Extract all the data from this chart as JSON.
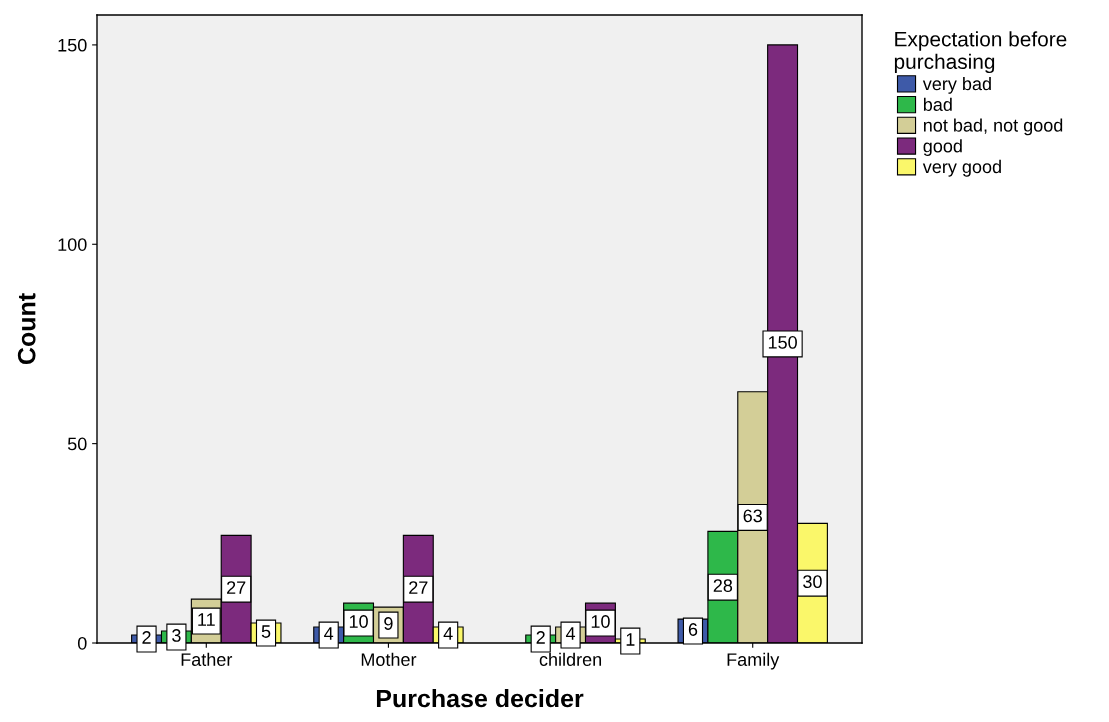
{
  "chart_data": {
    "type": "bar",
    "xlabel": "Purchase decider",
    "ylabel": "Count",
    "legend_title": "Expectation before\npurchasing",
    "categories": [
      "Father",
      "Mother",
      "children",
      "Family"
    ],
    "series": [
      {
        "name": "very bad",
        "color": "#3e5aa8",
        "values": [
          2,
          4,
          null,
          6
        ]
      },
      {
        "name": "bad",
        "color": "#2eb84a",
        "values": [
          3,
          10,
          2,
          28
        ]
      },
      {
        "name": "not bad, not good",
        "color": "#d3ce97",
        "values": [
          11,
          9,
          4,
          63
        ]
      },
      {
        "name": "good",
        "color": "#7c2a7d",
        "values": [
          27,
          27,
          10,
          150
        ]
      },
      {
        "name": "very good",
        "color": "#faf76a",
        "values": [
          5,
          4,
          1,
          30
        ]
      }
    ],
    "ylim": [
      0,
      157.5
    ],
    "yticks": [
      0,
      50,
      100,
      150
    ],
    "grid": false,
    "legend": "right",
    "data_labels": true
  }
}
